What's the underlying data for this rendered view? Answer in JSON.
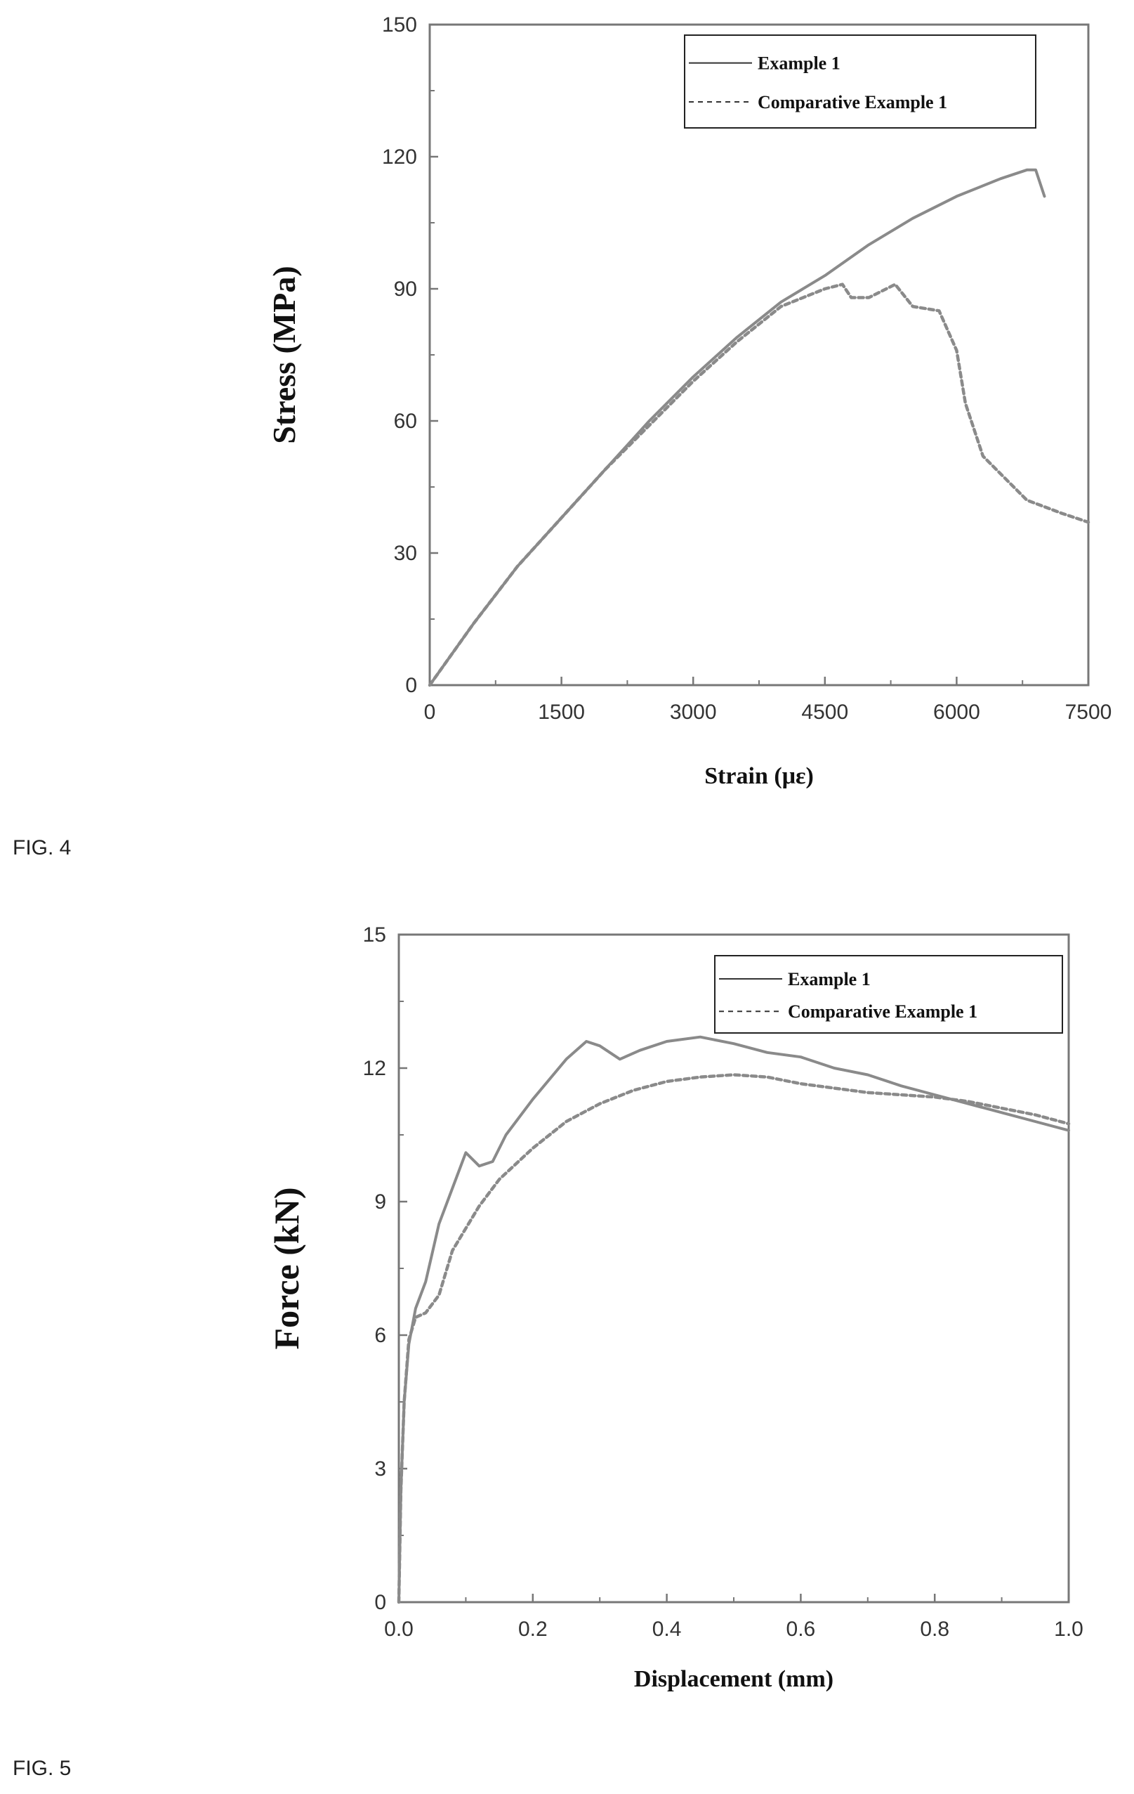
{
  "figures": [
    {
      "label": "FIG. 4"
    },
    {
      "label": "FIG. 5"
    }
  ],
  "chart_data": [
    {
      "type": "line",
      "title": "",
      "xlabel": "Strain (με)",
      "ylabel": "Stress (MPa)",
      "xlim": [
        0,
        7500
      ],
      "ylim": [
        0,
        150
      ],
      "xticks": [
        "0",
        "1500",
        "3000",
        "4500",
        "6000",
        "7500"
      ],
      "yticks": [
        "0",
        "30",
        "60",
        "90",
        "120",
        "150"
      ],
      "grid": false,
      "legend": "top-right",
      "series": [
        {
          "name": "Example 1",
          "style": "solid",
          "color": "#8a8a8a",
          "x": [
            0,
            500,
            1000,
            1500,
            2000,
            2500,
            3000,
            3500,
            4000,
            4500,
            5000,
            5500,
            6000,
            6500,
            6800,
            6900,
            7000
          ],
          "y": [
            0,
            14,
            27,
            38,
            49,
            60,
            70,
            79,
            87,
            93,
            100,
            106,
            111,
            115,
            117,
            117,
            111
          ]
        },
        {
          "name": "Comparative Example 1",
          "style": "dashed",
          "color": "#8a8a8a",
          "x": [
            0,
            500,
            1000,
            1500,
            2000,
            2500,
            3000,
            3500,
            4000,
            4500,
            4700,
            4800,
            5000,
            5300,
            5500,
            5800,
            6000,
            6100,
            6300,
            6500,
            6800,
            7200,
            7500
          ],
          "y": [
            0,
            14,
            27,
            38,
            49,
            59,
            69,
            78,
            86,
            90,
            91,
            88,
            88,
            91,
            86,
            85,
            76,
            64,
            52,
            48,
            42,
            39,
            37
          ]
        }
      ]
    },
    {
      "type": "line",
      "title": "",
      "xlabel": "Displacement (mm)",
      "ylabel": "Force (kN)",
      "xlim": [
        0,
        1
      ],
      "ylim": [
        0,
        15
      ],
      "xticks": [
        "0.0",
        "0.2",
        "0.4",
        "0.6",
        "0.8",
        "1.0"
      ],
      "yticks": [
        "0",
        "3",
        "6",
        "9",
        "12",
        "15"
      ],
      "grid": false,
      "legend": "top-right",
      "series": [
        {
          "name": "Example 1",
          "style": "solid",
          "color": "#8a8a8a",
          "x": [
            0,
            0.003,
            0.008,
            0.015,
            0.025,
            0.04,
            0.06,
            0.08,
            0.1,
            0.12,
            0.14,
            0.16,
            0.2,
            0.25,
            0.28,
            0.3,
            0.33,
            0.36,
            0.4,
            0.45,
            0.5,
            0.55,
            0.6,
            0.65,
            0.7,
            0.75,
            0.8,
            0.85,
            0.9,
            0.95,
            1.0
          ],
          "y": [
            0,
            2.5,
            4.5,
            5.8,
            6.6,
            7.2,
            8.5,
            9.3,
            10.1,
            9.8,
            9.9,
            10.5,
            11.3,
            12.2,
            12.6,
            12.5,
            12.2,
            12.4,
            12.6,
            12.7,
            12.55,
            12.35,
            12.25,
            12.0,
            11.85,
            11.6,
            11.4,
            11.2,
            11.0,
            10.8,
            10.6
          ]
        },
        {
          "name": "Comparative Example 1",
          "style": "dashed",
          "color": "#8a8a8a",
          "x": [
            0,
            0.003,
            0.008,
            0.015,
            0.025,
            0.04,
            0.06,
            0.08,
            0.1,
            0.12,
            0.15,
            0.2,
            0.25,
            0.3,
            0.35,
            0.4,
            0.45,
            0.5,
            0.55,
            0.6,
            0.65,
            0.7,
            0.75,
            0.8,
            0.85,
            0.9,
            0.95,
            1.0
          ],
          "y": [
            0,
            2.5,
            4.5,
            5.9,
            6.4,
            6.5,
            6.9,
            7.9,
            8.4,
            8.9,
            9.5,
            10.2,
            10.8,
            11.2,
            11.5,
            11.7,
            11.8,
            11.85,
            11.8,
            11.65,
            11.55,
            11.45,
            11.4,
            11.35,
            11.25,
            11.1,
            10.95,
            10.75
          ]
        }
      ]
    }
  ]
}
